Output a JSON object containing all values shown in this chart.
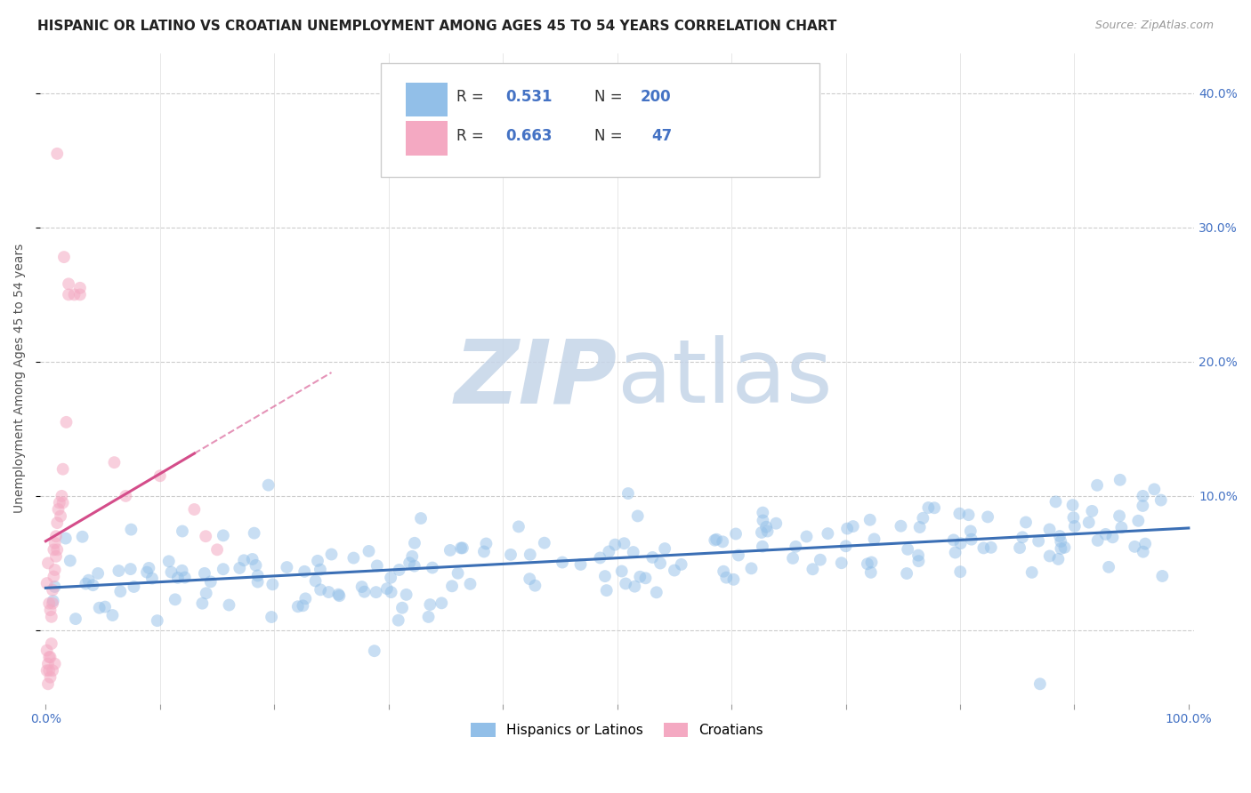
{
  "title": "HISPANIC OR LATINO VS CROATIAN UNEMPLOYMENT AMONG AGES 45 TO 54 YEARS CORRELATION CHART",
  "source": "Source: ZipAtlas.com",
  "ylabel": "Unemployment Among Ages 45 to 54 years",
  "xlim": [
    -0.005,
    1.005
  ],
  "ylim": [
    -0.055,
    0.43
  ],
  "xticks": [
    0.0,
    0.1,
    0.2,
    0.3,
    0.4,
    0.5,
    0.6,
    0.7,
    0.8,
    0.9,
    1.0
  ],
  "xticklabels": [
    "0.0%",
    "",
    "",
    "",
    "",
    "",
    "",
    "",
    "",
    "",
    "100.0%"
  ],
  "yticks_right": [
    0.1,
    0.2,
    0.3,
    0.4
  ],
  "yticklabels_right": [
    "10.0%",
    "20.0%",
    "30.0%",
    "40.0%"
  ],
  "blue_color": "#92bfe8",
  "pink_color": "#f4a9c2",
  "blue_line_color": "#3b6fb5",
  "pink_line_color": "#d44d8a",
  "legend_label_blue": "Hispanics or Latinos",
  "legend_label_pink": "Croatians",
  "watermark_zip": "ZIP",
  "watermark_atlas": "atlas",
  "watermark_color_zip": "#c5d5e8",
  "watermark_color_atlas": "#c5d5e8",
  "title_fontsize": 11,
  "label_fontsize": 10,
  "tick_fontsize": 10,
  "seed": 42
}
